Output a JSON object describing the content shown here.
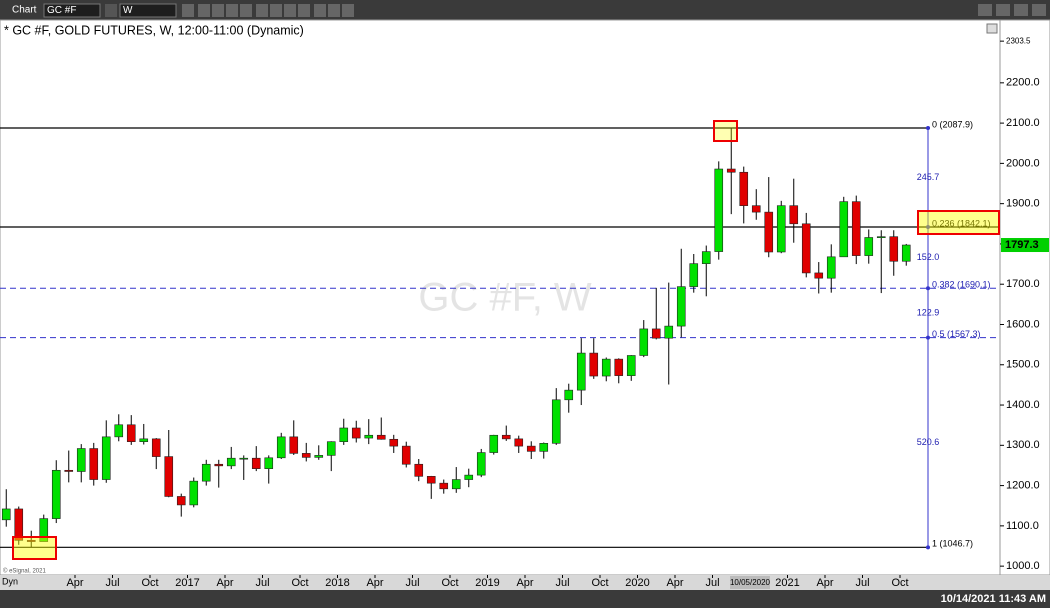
{
  "toolbar": {
    "app": "Chart",
    "symbol": "GC #F",
    "interval": "W"
  },
  "chart_data": {
    "type": "candlestick",
    "title": "* GC #F, GOLD FUTURES, W, 12:00-11:00 (Dynamic)",
    "watermark": "GC #F, W",
    "up_color": "#00e000",
    "down_color": "#e00000",
    "x": [
      "2015-10",
      "2015-11",
      "2015-12",
      "2016-01",
      "2016-02",
      "2016-03",
      "2016-04",
      "2016-05",
      "2016-06",
      "2016-07",
      "2016-08",
      "2016-09",
      "2016-10",
      "2016-11",
      "2016-12",
      "2017-01",
      "2017-02",
      "2017-03",
      "2017-04",
      "2017-05",
      "2017-06",
      "2017-07",
      "2017-08",
      "2017-09",
      "2017-10",
      "2017-11",
      "2017-12",
      "2018-01",
      "2018-02",
      "2018-03",
      "2018-04",
      "2018-05",
      "2018-06",
      "2018-07",
      "2018-08",
      "2018-09",
      "2018-10",
      "2018-11",
      "2018-12",
      "2019-01",
      "2019-02",
      "2019-03",
      "2019-04",
      "2019-05",
      "2019-06",
      "2019-07",
      "2019-08",
      "2019-09",
      "2019-10",
      "2019-11",
      "2019-12",
      "2020-01",
      "2020-02",
      "2020-03",
      "2020-04",
      "2020-05",
      "2020-06",
      "2020-07",
      "2020-08",
      "2020-09",
      "2020-10",
      "2020-11",
      "2020-12",
      "2021-01",
      "2021-02",
      "2021-03",
      "2021-04",
      "2021-05",
      "2021-06",
      "2021-07",
      "2021-08",
      "2021-09",
      "2021-10"
    ],
    "open": [
      1115,
      1142,
      1064,
      1061,
      1118,
      1238,
      1235,
      1292,
      1215,
      1321,
      1351,
      1309,
      1316,
      1272,
      1173,
      1152,
      1211,
      1253,
      1249,
      1268,
      1268,
      1242,
      1269,
      1321,
      1280,
      1270,
      1275,
      1309,
      1343,
      1318,
      1325,
      1315,
      1298,
      1253,
      1223,
      1206,
      1192,
      1215,
      1226,
      1282,
      1325,
      1316,
      1298,
      1285,
      1305,
      1413,
      1437,
      1529,
      1472,
      1514,
      1473,
      1523,
      1589,
      1566,
      1596,
      1694,
      1751,
      1781,
      1986,
      1978,
      1895,
      1879,
      1780,
      1895,
      1850,
      1728,
      1715,
      1768,
      1905,
      1771,
      1816,
      1818,
      1757
    ],
    "high": [
      1191,
      1148,
      1088,
      1128,
      1263,
      1287,
      1303,
      1306,
      1362,
      1377,
      1375,
      1353,
      1318,
      1338,
      1180,
      1220,
      1264,
      1264,
      1296,
      1275,
      1298,
      1275,
      1331,
      1362,
      1306,
      1300,
      1310,
      1366,
      1361,
      1365,
      1369,
      1326,
      1309,
      1266,
      1224,
      1215,
      1246,
      1242,
      1291,
      1326,
      1349,
      1324,
      1310,
      1307,
      1442,
      1453,
      1566,
      1566,
      1518,
      1516,
      1524,
      1611,
      1691,
      1704,
      1788,
      1775,
      1796,
      2005,
      2089,
      1992,
      1936,
      1966,
      1907,
      1962,
      1877,
      1755,
      1799,
      1917,
      1920,
      1836,
      1834,
      1834,
      1800
    ],
    "low": [
      1098,
      1053,
      1046.7,
      1062,
      1107,
      1208,
      1208,
      1200,
      1207,
      1310,
      1301,
      1302,
      1241,
      1171,
      1123,
      1146,
      1200,
      1195,
      1241,
      1214,
      1236,
      1205,
      1266,
      1276,
      1260,
      1264,
      1236,
      1301,
      1307,
      1303,
      1314,
      1281,
      1245,
      1211,
      1167,
      1180,
      1182,
      1196,
      1221,
      1277,
      1311,
      1281,
      1266,
      1267,
      1301,
      1381,
      1400,
      1465,
      1459,
      1454,
      1460,
      1519,
      1563,
      1451,
      1568,
      1679,
      1670,
      1761,
      1874,
      1851,
      1860,
      1767,
      1777,
      1803,
      1717,
      1677,
      1679,
      1769,
      1750,
      1751,
      1678,
      1721,
      1746
    ],
    "close": [
      1142,
      1064,
      1061,
      1118,
      1238,
      1235,
      1292,
      1215,
      1321,
      1351,
      1309,
      1316,
      1272,
      1173,
      1152,
      1211,
      1253,
      1249,
      1268,
      1268,
      1242,
      1269,
      1321,
      1280,
      1270,
      1275,
      1309,
      1343,
      1318,
      1325,
      1315,
      1298,
      1253,
      1223,
      1206,
      1192,
      1215,
      1226,
      1282,
      1325,
      1316,
      1298,
      1285,
      1305,
      1413,
      1437,
      1529,
      1472,
      1514,
      1473,
      1523,
      1589,
      1566,
      1596,
      1694,
      1751,
      1781,
      1986,
      1978,
      1895,
      1879,
      1780,
      1895,
      1850,
      1728,
      1715,
      1768,
      1905,
      1771,
      1816,
      1818,
      1757,
      1797.3
    ],
    "xlim": [
      "2015-10",
      "2022-06"
    ],
    "xticks": [
      {
        "value": "2016-04",
        "label": "Apr"
      },
      {
        "value": "2016-07",
        "label": "Jul"
      },
      {
        "value": "2016-10",
        "label": "Oct"
      },
      {
        "value": "2017-01",
        "label": "2017"
      },
      {
        "value": "2017-04",
        "label": "Apr"
      },
      {
        "value": "2017-07",
        "label": "Jul"
      },
      {
        "value": "2017-10",
        "label": "Oct"
      },
      {
        "value": "2018-01",
        "label": "2018"
      },
      {
        "value": "2018-04",
        "label": "Apr"
      },
      {
        "value": "2018-07",
        "label": "Jul"
      },
      {
        "value": "2018-10",
        "label": "Oct"
      },
      {
        "value": "2019-01",
        "label": "2019"
      },
      {
        "value": "2019-04",
        "label": "Apr"
      },
      {
        "value": "2019-07",
        "label": "Jul"
      },
      {
        "value": "2019-10",
        "label": "Oct"
      },
      {
        "value": "2020-01",
        "label": "2020"
      },
      {
        "value": "2020-04",
        "label": "Apr"
      },
      {
        "value": "2020-07",
        "label": "Jul"
      },
      {
        "value": "2021-01",
        "label": "2021"
      },
      {
        "value": "2021-04",
        "label": "Apr"
      },
      {
        "value": "2021-07",
        "label": "Jul"
      },
      {
        "value": "2021-10",
        "label": "Oct"
      }
    ],
    "cursor_date": {
      "value": "2020-10",
      "label": "10/05/2020"
    },
    "ylim": [
      978,
      2356
    ],
    "yticks": [
      {
        "value": 1000,
        "label": "1000.0"
      },
      {
        "value": 1100,
        "label": "1100.0"
      },
      {
        "value": 1200,
        "label": "1200.0"
      },
      {
        "value": 1300,
        "label": "1300.0"
      },
      {
        "value": 1400,
        "label": "1400.0"
      },
      {
        "value": 1500,
        "label": "1500.0"
      },
      {
        "value": 1600,
        "label": "1600.0"
      },
      {
        "value": 1700,
        "label": "1700.0"
      },
      {
        "value": 1800,
        "label": "1800.0"
      },
      {
        "value": 1900,
        "label": "1900.0"
      },
      {
        "value": 2000,
        "label": "2000.0"
      },
      {
        "value": 2100,
        "label": "2100.0"
      },
      {
        "value": 2200,
        "label": "2200.0"
      },
      2303.5
    ],
    "last_price": 1797.3,
    "fib_levels": [
      {
        "value": 2087.9,
        "label": "0 (2087.9)",
        "color": "#000000",
        "dashed": false
      },
      {
        "value": 1842.1,
        "label": "0.236 (1842.1)",
        "color": "#000000",
        "dashed": false
      },
      {
        "value": 1690.1,
        "label": "0.382 (1690.1)",
        "color": "#3333cc",
        "dashed": true
      },
      {
        "value": 1567.3,
        "label": "0.5 (1567.3)",
        "color": "#3333cc",
        "dashed": true
      },
      {
        "value": 1046.7,
        "label": "1 (1046.7)",
        "color": "#000000",
        "dashed": false
      }
    ],
    "fib_distances": [
      245.7,
      {
        "value": 152,
        "label": "152.0"
      },
      122.9,
      520.6
    ]
  },
  "footer": {
    "copyright": "© eSignal, 2021",
    "mode": "Dyn",
    "timestamp": "10/14/2021 11:43 AM"
  }
}
